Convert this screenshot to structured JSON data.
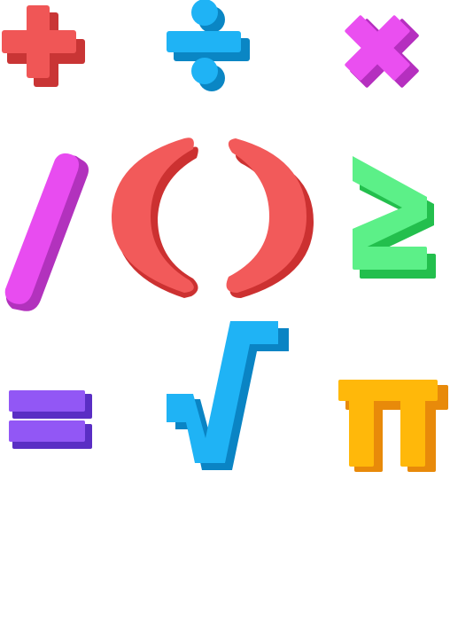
{
  "symbols": [
    {
      "name": "plus",
      "color": "#f05656",
      "shade": "#c93535"
    },
    {
      "name": "divide",
      "color": "#1fb3f5",
      "shade": "#0a86c4"
    },
    {
      "name": "multiply",
      "color": "#ea4ff0",
      "shade": "#b52fbf"
    },
    {
      "name": "slash",
      "color": "#e84cf0",
      "shade": "#b232bd"
    },
    {
      "name": "parentheses",
      "color": "#f25a5a",
      "shade": "#cc3131"
    },
    {
      "name": "greater-equal",
      "color": "#5cf088",
      "shade": "#23bf4d"
    },
    {
      "name": "equals",
      "color": "#9257f5",
      "shade": "#5a2ec4"
    },
    {
      "name": "square-root",
      "color": "#1fb3f5",
      "shade": "#0a84c4"
    },
    {
      "name": "pi",
      "color": "#ffb80a",
      "shade": "#e88a0a"
    }
  ]
}
